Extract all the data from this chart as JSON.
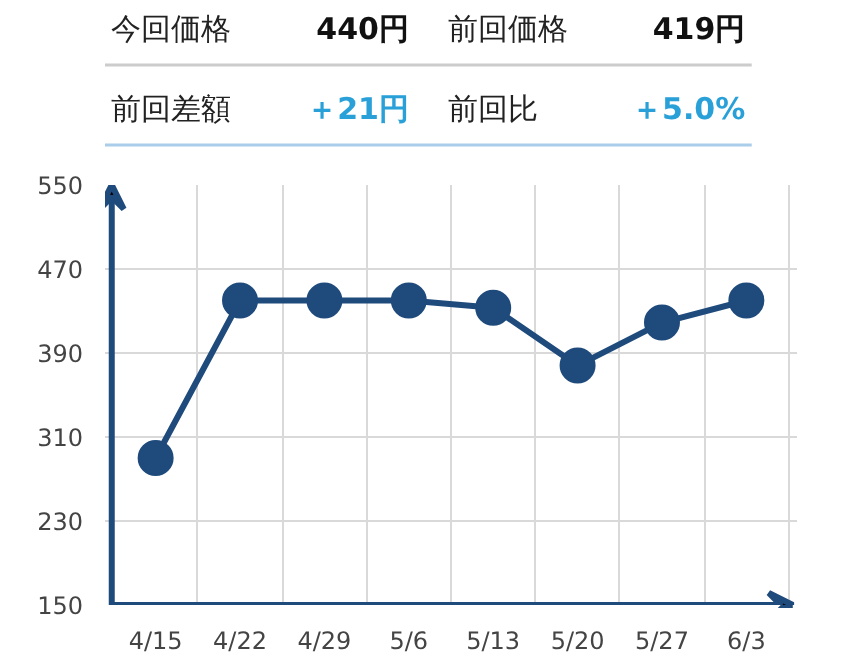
{
  "chart_data": [
    {
      "type": "other",
      "annotations": [
        "今回価格",
        "440円",
        "前回価格",
        "419円",
        "前回差額",
        "＋21円",
        "前回比",
        "＋5.0%"
      ],
      "colors": [
        "#222222",
        "#111111",
        "#222222",
        "#111111",
        "#222222",
        "#29a0d8",
        "#222222",
        "#29a0d8"
      ]
    },
    {
      "type": "line",
      "categories": [
        "4/15",
        "4/22",
        "4/29",
        "5/6",
        "5/13",
        "5/20",
        "5/27",
        "6/3"
      ],
      "series": [
        {
          "color": "#1f4a7c",
          "values": [
            290,
            440,
            440,
            440,
            433,
            378,
            419,
            440
          ]
        }
      ],
      "ylim": [
        150,
        550
      ],
      "yticks": [
        150,
        230,
        310,
        390,
        470,
        550
      ],
      "grid": true,
      "marker": "circle",
      "line_style": "solid"
    }
  ]
}
